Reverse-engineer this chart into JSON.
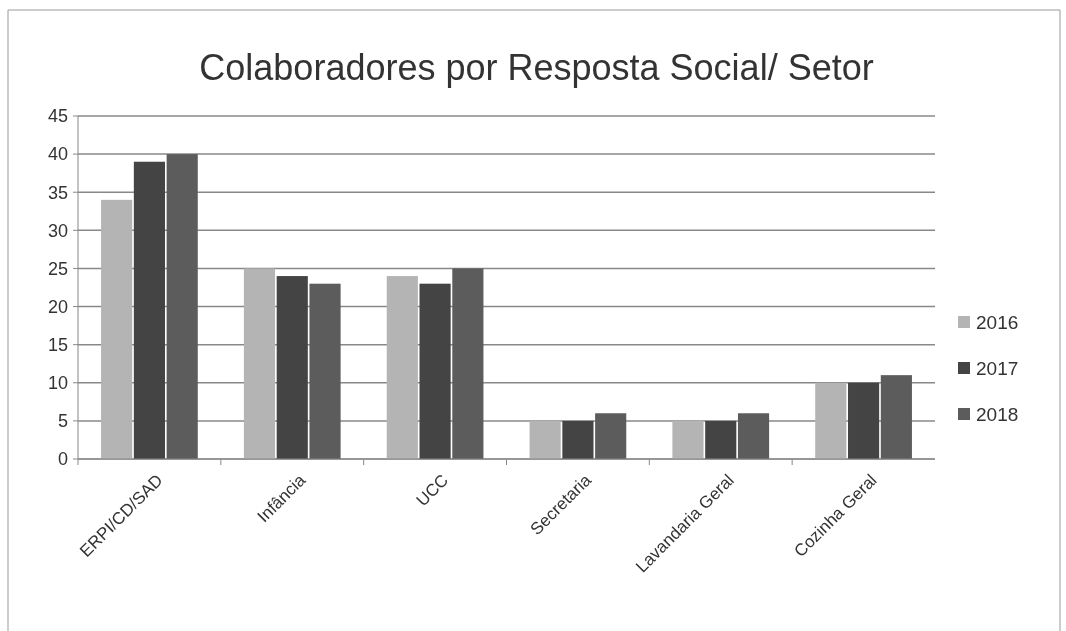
{
  "chart_data": {
    "type": "bar",
    "title": "Colaboradores por Resposta Social/ Setor",
    "categories": [
      "ERPI/CD/SAD",
      "Infância",
      "UCC",
      "Secretaria",
      "Lavandaria Geral",
      "Cozinha Geral"
    ],
    "series": [
      {
        "name": "2016",
        "color": "#b4b4b4",
        "values": [
          34,
          25,
          24,
          5,
          5,
          10
        ]
      },
      {
        "name": "2017",
        "color": "#444444",
        "values": [
          39,
          24,
          23,
          5,
          5,
          10
        ]
      },
      {
        "name": "2018",
        "color": "#5c5c5c",
        "values": [
          40,
          23,
          25,
          6,
          6,
          11
        ]
      }
    ],
    "ylim": [
      0,
      45
    ],
    "yticks": [
      0,
      5,
      10,
      15,
      20,
      25,
      30,
      35,
      40,
      45
    ],
    "grid": "y",
    "legend": "right"
  }
}
